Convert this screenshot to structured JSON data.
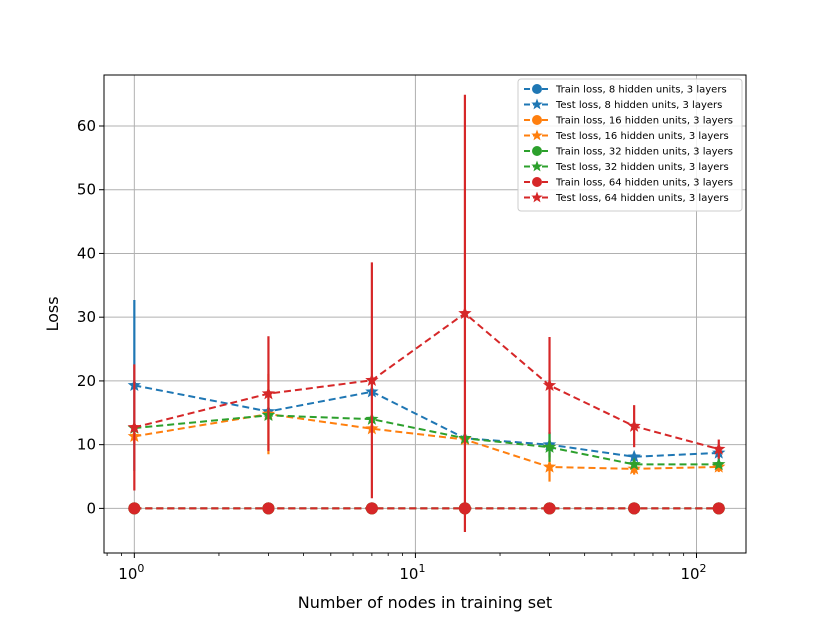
{
  "chart_data": {
    "type": "line",
    "xlabel": "Number of nodes in training set",
    "ylabel": "Loss",
    "xscale": "log",
    "xlim": [
      0.78,
      150
    ],
    "ylim": [
      -7,
      68
    ],
    "x_ticks": [
      {
        "value": 1,
        "base": "10",
        "exp": "0"
      },
      {
        "value": 10,
        "base": "10",
        "exp": "1"
      },
      {
        "value": 100,
        "base": "10",
        "exp": "2"
      }
    ],
    "y_ticks": [
      0,
      10,
      20,
      30,
      40,
      50,
      60
    ],
    "grid": true,
    "legend_position": "top-right",
    "x": [
      1,
      3,
      7,
      15,
      30,
      60,
      120
    ],
    "series": [
      {
        "name": "Train loss, 8 hidden units, 3 layers",
        "color": "#1f77b4",
        "marker": "circle",
        "values": [
          0,
          0,
          0,
          0,
          0,
          0,
          0
        ],
        "errors": [
          0,
          0,
          0,
          0,
          0,
          0,
          0
        ]
      },
      {
        "name": "Test loss, 8 hidden units, 3 layers",
        "color": "#1f77b4",
        "marker": "star",
        "values": [
          19.3,
          15.2,
          18.3,
          11.0,
          10.0,
          8.1,
          8.7
        ],
        "errors": [
          13.4,
          0.5,
          0.5,
          0.6,
          2.0,
          0.6,
          1.2
        ]
      },
      {
        "name": "Train loss, 16 hidden units, 3 layers",
        "color": "#ff7f0e",
        "marker": "circle",
        "values": [
          0,
          0,
          0,
          0,
          0,
          0,
          0
        ],
        "errors": [
          0,
          0,
          0,
          0,
          0,
          0,
          0
        ]
      },
      {
        "name": "Test loss, 16 hidden units, 3 layers",
        "color": "#ff7f0e",
        "marker": "star",
        "values": [
          11.3,
          14.8,
          12.5,
          10.8,
          6.5,
          6.2,
          6.5
        ],
        "errors": [
          1.0,
          6.3,
          0.5,
          0.6,
          2.3,
          0.9,
          0.8
        ]
      },
      {
        "name": "Train loss, 32 hidden units, 3 layers",
        "color": "#2ca02c",
        "marker": "circle",
        "values": [
          0,
          0,
          0,
          0,
          0,
          0,
          0
        ],
        "errors": [
          0,
          0,
          0,
          0,
          0,
          0,
          0
        ]
      },
      {
        "name": "Test loss, 32 hidden units, 3 layers",
        "color": "#2ca02c",
        "marker": "star",
        "values": [
          12.6,
          14.6,
          14.0,
          11.0,
          9.6,
          6.9,
          6.9
        ],
        "errors": [
          0.5,
          0.8,
          0.6,
          0.5,
          2.3,
          0.5,
          0.5
        ]
      },
      {
        "name": "Train loss, 64 hidden units, 3 layers",
        "color": "#d62728",
        "marker": "circle",
        "values": [
          0,
          0,
          0,
          0,
          0,
          0,
          0
        ],
        "errors": [
          0,
          0,
          0,
          0,
          0,
          0,
          0
        ]
      },
      {
        "name": "Test loss, 64 hidden units, 3 layers",
        "color": "#d62728",
        "marker": "star",
        "values": [
          12.7,
          18.0,
          20.1,
          30.6,
          19.3,
          12.9,
          9.3
        ],
        "errors": [
          9.9,
          9.0,
          18.5,
          34.3,
          7.6,
          3.3,
          1.5
        ]
      }
    ]
  }
}
